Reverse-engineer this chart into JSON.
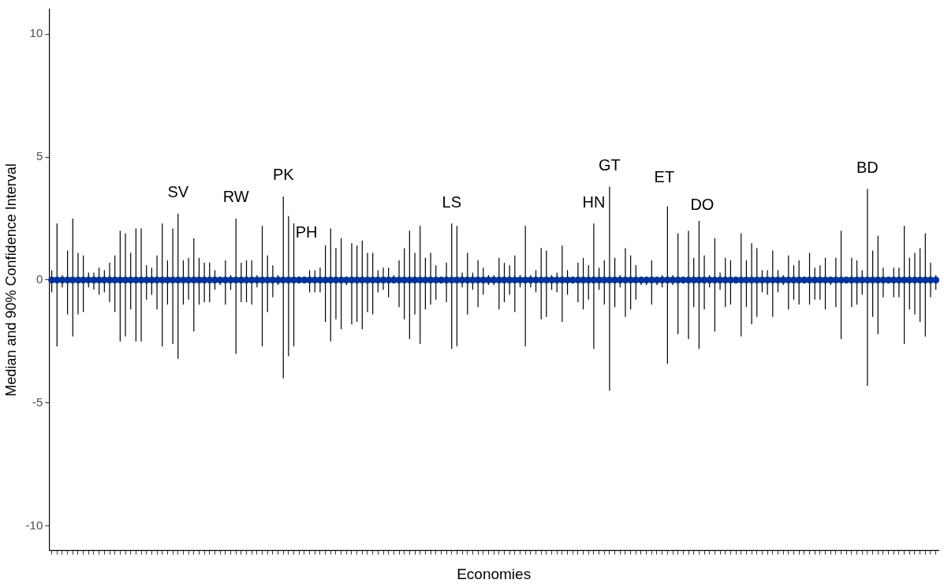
{
  "chart_data": {
    "type": "scatter",
    "xlabel": "Economies",
    "ylabel": "Median and 90% Confidence Interval",
    "categories": [
      null,
      null,
      null,
      null,
      null,
      null,
      null,
      null,
      null,
      null,
      null,
      null,
      null,
      null,
      null,
      null,
      null,
      null,
      null,
      null,
      null,
      null,
      null,
      null,
      null,
      null,
      null,
      null,
      null,
      null,
      null,
      null,
      null,
      null,
      null,
      null,
      null,
      null,
      null,
      null,
      null,
      null,
      null,
      null,
      null,
      null,
      null,
      null,
      null,
      null,
      null,
      null,
      null,
      null,
      null,
      null,
      null,
      null,
      null,
      null,
      null,
      null,
      null,
      null,
      null,
      null,
      null,
      null,
      null,
      null,
      null,
      null,
      null,
      null,
      null,
      null,
      null,
      null,
      null,
      null,
      null,
      null,
      null,
      null,
      null,
      null,
      null,
      null,
      null,
      null,
      null,
      null,
      null,
      null,
      null,
      null,
      null,
      null,
      null,
      null,
      null,
      null,
      null,
      null,
      null,
      null,
      null,
      null,
      null,
      null,
      null,
      null,
      null,
      null,
      null,
      null,
      null,
      null,
      null,
      null,
      null,
      null,
      null,
      null,
      null,
      null,
      null,
      null,
      null,
      null,
      null,
      null,
      null,
      null,
      null,
      null,
      null,
      null,
      null,
      null,
      null,
      null,
      null,
      null,
      null,
      null,
      null,
      null,
      null,
      null,
      null,
      null,
      null,
      null,
      null,
      null,
      null,
      null,
      null,
      null,
      null,
      null,
      null,
      null,
      null,
      null,
      null,
      null,
      null
    ],
    "series": [
      {
        "color": "#003399",
        "values": [
          0,
          0,
          0,
          0,
          0,
          0,
          0,
          0,
          0,
          0,
          0,
          0,
          0,
          0,
          0,
          0,
          0,
          0,
          0,
          0,
          0,
          0,
          0,
          0,
          0,
          0,
          0,
          0,
          0,
          0,
          0,
          0,
          0,
          0,
          0,
          0,
          0,
          0,
          0,
          0,
          0,
          0,
          0,
          0,
          0,
          0,
          0,
          0,
          0,
          0,
          0,
          0,
          0,
          0,
          0,
          0,
          0,
          0,
          0,
          0,
          0,
          0,
          0,
          0,
          0,
          0,
          0,
          0,
          0,
          0,
          0,
          0,
          0,
          0,
          0,
          0,
          0,
          0,
          0,
          0,
          0,
          0,
          0,
          0,
          0,
          0,
          0,
          0,
          0,
          0,
          0,
          0,
          0,
          0,
          0,
          0,
          0,
          0,
          0,
          0,
          0,
          0,
          0,
          0,
          0,
          0,
          0,
          0,
          0,
          0,
          0,
          0,
          0,
          0,
          0,
          0,
          0,
          0,
          0,
          0,
          0,
          0,
          0,
          0,
          0,
          0,
          0,
          0,
          0,
          0,
          0,
          0,
          0,
          0,
          0,
          0,
          0,
          0,
          0,
          0,
          0,
          0,
          0,
          0,
          0,
          0,
          0,
          0,
          0,
          0,
          0,
          0,
          0,
          0,
          0,
          0,
          0,
          0,
          0,
          0,
          0,
          0,
          0,
          0,
          0,
          0,
          0,
          0,
          0
        ],
        "errors": [
          [
            -0.5,
            0.4
          ],
          [
            -2.7,
            2.3
          ],
          [
            -0.3,
            0.2
          ],
          [
            -1.4,
            1.2
          ],
          [
            -2.3,
            2.5
          ],
          [
            -1.4,
            1.1
          ],
          [
            -1.3,
            1.0
          ],
          [
            -0.3,
            0.3
          ],
          [
            -0.4,
            0.3
          ],
          [
            -0.6,
            0.5
          ],
          [
            -0.5,
            0.4
          ],
          [
            -0.9,
            0.7
          ],
          [
            -1.3,
            1.0
          ],
          [
            -2.5,
            2.0
          ],
          [
            -2.3,
            1.9
          ],
          [
            -1.2,
            1.1
          ],
          [
            -2.5,
            2.1
          ],
          [
            -2.5,
            2.1
          ],
          [
            -0.8,
            0.6
          ],
          [
            -0.6,
            0.5
          ],
          [
            -1.2,
            1.0
          ],
          [
            -2.7,
            2.3
          ],
          [
            -1.0,
            0.8
          ],
          [
            -2.6,
            2.1
          ],
          [
            -3.2,
            2.7
          ],
          [
            -1.0,
            0.8
          ],
          [
            -0.8,
            0.9
          ],
          [
            -2.1,
            1.7
          ],
          [
            -1.0,
            0.9
          ],
          [
            -0.9,
            0.7
          ],
          [
            -0.9,
            0.7
          ],
          [
            -0.4,
            0.4
          ],
          [
            -0.2,
            0.1
          ],
          [
            -1.0,
            0.8
          ],
          [
            -0.4,
            0.2
          ],
          [
            -3.0,
            2.5
          ],
          [
            -0.9,
            0.7
          ],
          [
            -0.9,
            0.8
          ],
          [
            -1.0,
            0.8
          ],
          [
            -0.3,
            0.2
          ],
          [
            -2.7,
            2.2
          ],
          [
            -1.3,
            1.0
          ],
          [
            -0.7,
            0.6
          ],
          [
            -0.2,
            0.2
          ],
          [
            -4.0,
            3.4
          ],
          [
            -3.1,
            2.6
          ],
          [
            -2.7,
            2.3
          ],
          null,
          null,
          [
            -0.5,
            0.4
          ],
          [
            -0.5,
            0.4
          ],
          [
            -0.5,
            0.5
          ],
          [
            -1.7,
            1.4
          ],
          [
            -2.5,
            2.1
          ],
          [
            -1.6,
            1.3
          ],
          [
            -2.0,
            1.7
          ],
          [
            -0.2,
            0.1
          ],
          [
            -1.8,
            1.5
          ],
          [
            -1.7,
            1.4
          ],
          [
            -2.0,
            1.6
          ],
          [
            -1.3,
            1.1
          ],
          [
            -1.4,
            1.1
          ],
          [
            -0.5,
            0.4
          ],
          [
            -0.4,
            0.5
          ],
          [
            -0.7,
            0.5
          ],
          [
            -0.1,
            0.2
          ],
          [
            -1.1,
            0.8
          ],
          [
            -1.6,
            1.3
          ],
          [
            -2.4,
            2.0
          ],
          [
            -1.4,
            1.1
          ],
          [
            -2.6,
            2.2
          ],
          [
            -1.2,
            0.9
          ],
          [
            -1.0,
            1.1
          ],
          [
            -0.8,
            0.6
          ],
          null,
          [
            -0.9,
            0.7
          ],
          [
            -2.8,
            2.3
          ],
          [
            -2.7,
            2.2
          ],
          [
            -0.3,
            0.3
          ],
          [
            -1.4,
            1.1
          ],
          [
            -0.4,
            0.3
          ],
          [
            -1.1,
            0.8
          ],
          [
            -0.6,
            0.5
          ],
          [
            -0.2,
            0.2
          ],
          [
            -0.2,
            0.2
          ],
          [
            -1.2,
            0.9
          ],
          [
            -0.9,
            0.7
          ],
          [
            -0.6,
            0.6
          ],
          [
            -1.3,
            1.0
          ],
          [
            -0.3,
            0.2
          ],
          [
            -2.7,
            2.2
          ],
          [
            -0.3,
            0.2
          ],
          [
            -0.5,
            0.4
          ],
          [
            -1.6,
            1.3
          ],
          [
            -1.5,
            1.2
          ],
          [
            -0.4,
            0.2
          ],
          [
            -0.5,
            0.3
          ],
          [
            -1.7,
            1.4
          ],
          [
            -0.6,
            0.4
          ],
          null,
          [
            -0.9,
            0.7
          ],
          [
            -1.2,
            0.9
          ],
          [
            -0.8,
            0.6
          ],
          [
            -2.8,
            2.3
          ],
          [
            -0.4,
            0.5
          ],
          [
            -1.0,
            0.8
          ],
          [
            -4.5,
            3.8
          ],
          [
            -1.1,
            0.9
          ],
          [
            -0.3,
            0.2
          ],
          [
            -1.5,
            1.3
          ],
          [
            -1.2,
            1.0
          ],
          [
            -0.8,
            0.6
          ],
          [
            -0.2,
            0.1
          ],
          [
            -0.2,
            0.1
          ],
          [
            -1.0,
            0.8
          ],
          [
            -0.2,
            0.1
          ],
          [
            -0.3,
            0.2
          ],
          [
            -3.4,
            3.0
          ],
          [
            -0.2,
            0.2
          ],
          [
            -2.2,
            1.9
          ],
          null,
          [
            -2.4,
            2.0
          ],
          [
            -1.1,
            0.9
          ],
          [
            -2.8,
            2.4
          ],
          [
            -1.2,
            1.0
          ],
          [
            -0.3,
            0.2
          ],
          [
            -2.1,
            1.7
          ],
          [
            -0.4,
            0.3
          ],
          [
            -1.1,
            0.9
          ],
          [
            -1.0,
            0.8
          ],
          null,
          [
            -2.3,
            1.9
          ],
          [
            -1.1,
            0.8
          ],
          [
            -1.8,
            1.5
          ],
          [
            -1.5,
            1.3
          ],
          [
            -0.5,
            0.4
          ],
          [
            -0.6,
            0.4
          ],
          [
            -1.5,
            1.2
          ],
          [
            -0.5,
            0.4
          ],
          [
            -0.2,
            0.2
          ],
          [
            -1.2,
            1.0
          ],
          [
            -0.8,
            0.6
          ],
          [
            -1.0,
            0.8
          ],
          null,
          [
            -1.0,
            1.1
          ],
          [
            -0.8,
            0.5
          ],
          [
            -0.8,
            0.6
          ],
          [
            -1.2,
            0.9
          ],
          [
            -0.2,
            0.1
          ],
          [
            -1.1,
            0.9
          ],
          [
            -2.4,
            2.0
          ],
          null,
          [
            -1.1,
            0.9
          ],
          [
            -1.0,
            0.8
          ],
          [
            -0.6,
            0.4
          ],
          [
            -4.3,
            3.7
          ],
          [
            -1.5,
            1.2
          ],
          [
            -2.2,
            1.8
          ],
          [
            -0.7,
            0.5
          ],
          null,
          [
            -0.7,
            0.5
          ],
          [
            -0.7,
            0.5
          ],
          [
            -2.6,
            2.2
          ],
          [
            -1.2,
            0.9
          ],
          [
            -1.4,
            1.1
          ],
          [
            -1.7,
            1.3
          ],
          [
            -2.3,
            1.9
          ],
          [
            -0.7,
            0.7
          ],
          [
            -0.4,
            0.2
          ]
        ]
      }
    ],
    "annotations": [
      "SV",
      "RW",
      "PK",
      "PH",
      "LS",
      "HN",
      "GT",
      "ET",
      "DO",
      "BD"
    ],
    "ylim": [
      -11,
      11
    ],
    "yticks": [
      -10,
      -5,
      0,
      5,
      10
    ],
    "grid": false,
    "legend": false,
    "tick_labels": "y",
    "marker": "circle"
  }
}
